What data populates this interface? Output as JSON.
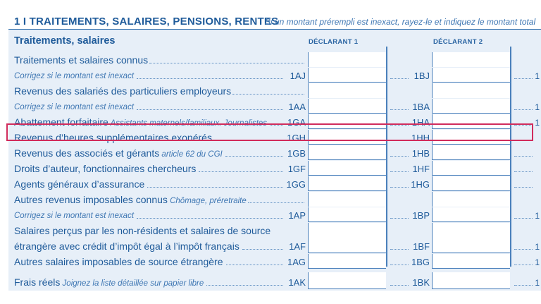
{
  "header": {
    "title": "1 I TRAITEMENTS, SALAIRES, PENSIONS, RENTES",
    "note": "Si un montant prérempli est inexact, rayez-le et indiquez le montant total"
  },
  "section": {
    "heading": "Traitements, salaires",
    "col1": "DÉCLARANT 1",
    "col2": "DÉCLARANT 2"
  },
  "rows": [
    {
      "label": "Traitements et salaires connus",
      "aside": "",
      "code1": "",
      "code2": "",
      "italic": false,
      "cell": "short"
    },
    {
      "label": "Corrigez si le montant est inexact",
      "aside": "",
      "code1": "1AJ",
      "code2": "1BJ",
      "italic": true,
      "cell": "full"
    },
    {
      "label": "Revenus des salariés des particuliers employeurs",
      "aside": "",
      "code1": "",
      "code2": "",
      "italic": false,
      "cell": "short"
    },
    {
      "label": "Corrigez si le montant est inexact",
      "aside": "",
      "code1": "1AA",
      "code2": "1BA",
      "italic": true,
      "cell": "full"
    },
    {
      "label": "Abattement forfaitaire",
      "aside": "Assistants maternels/familiaux. Journalistes",
      "code1": "1GA",
      "code2": "1HA",
      "italic": false,
      "cell": "full"
    },
    {
      "label": "Revenus d’heures supplémentaires exonérés",
      "aside": "",
      "code1": "1GH",
      "code2": "1HH",
      "italic": false,
      "cell": "full"
    },
    {
      "label": "Revenus des associés et gérants",
      "aside": "article 62 du CGI",
      "code1": "1GB",
      "code2": "1HB",
      "italic": false,
      "cell": "full"
    },
    {
      "label": "Droits d’auteur, fonctionnaires chercheurs",
      "aside": "",
      "code1": "1GF",
      "code2": "1HF",
      "italic": false,
      "cell": "full"
    },
    {
      "label": "Agents généraux d’assurance",
      "aside": "",
      "code1": "1GG",
      "code2": "1HG",
      "italic": false,
      "cell": "full"
    },
    {
      "label": "Autres revenus imposables connus",
      "aside": "Chômage, préretraite",
      "code1": "",
      "code2": "",
      "italic": false,
      "cell": "short"
    },
    {
      "label": "Corrigez si le montant est inexact",
      "aside": "",
      "code1": "1AP",
      "code2": "1BP",
      "italic": true,
      "cell": "full"
    },
    {
      "label": "Salaires perçus par les non-résidents et salaires de source",
      "aside": "",
      "code1": "",
      "code2": "",
      "italic": false,
      "cell": "none"
    },
    {
      "label": "étrangère avec crédit d’impôt égal à l’impôt français",
      "aside": "",
      "code1": "1AF",
      "code2": "1BF",
      "italic": false,
      "cell": "full"
    },
    {
      "label": "Autres salaires imposables de source étrangère",
      "aside": "",
      "code1": "1AG",
      "code2": "1BG",
      "italic": false,
      "cell": "full"
    },
    {
      "label": "Frais réels",
      "aside": "Joignez la liste détaillée sur papier libre",
      "code1": "1AK",
      "code2": "1BK",
      "italic": false,
      "cell": "tall"
    }
  ],
  "edge_marks": [
    "",
    "1",
    "",
    "1",
    "1",
    "",
    "",
    "",
    "",
    "",
    "1",
    "",
    "1",
    "1",
    "1"
  ]
}
